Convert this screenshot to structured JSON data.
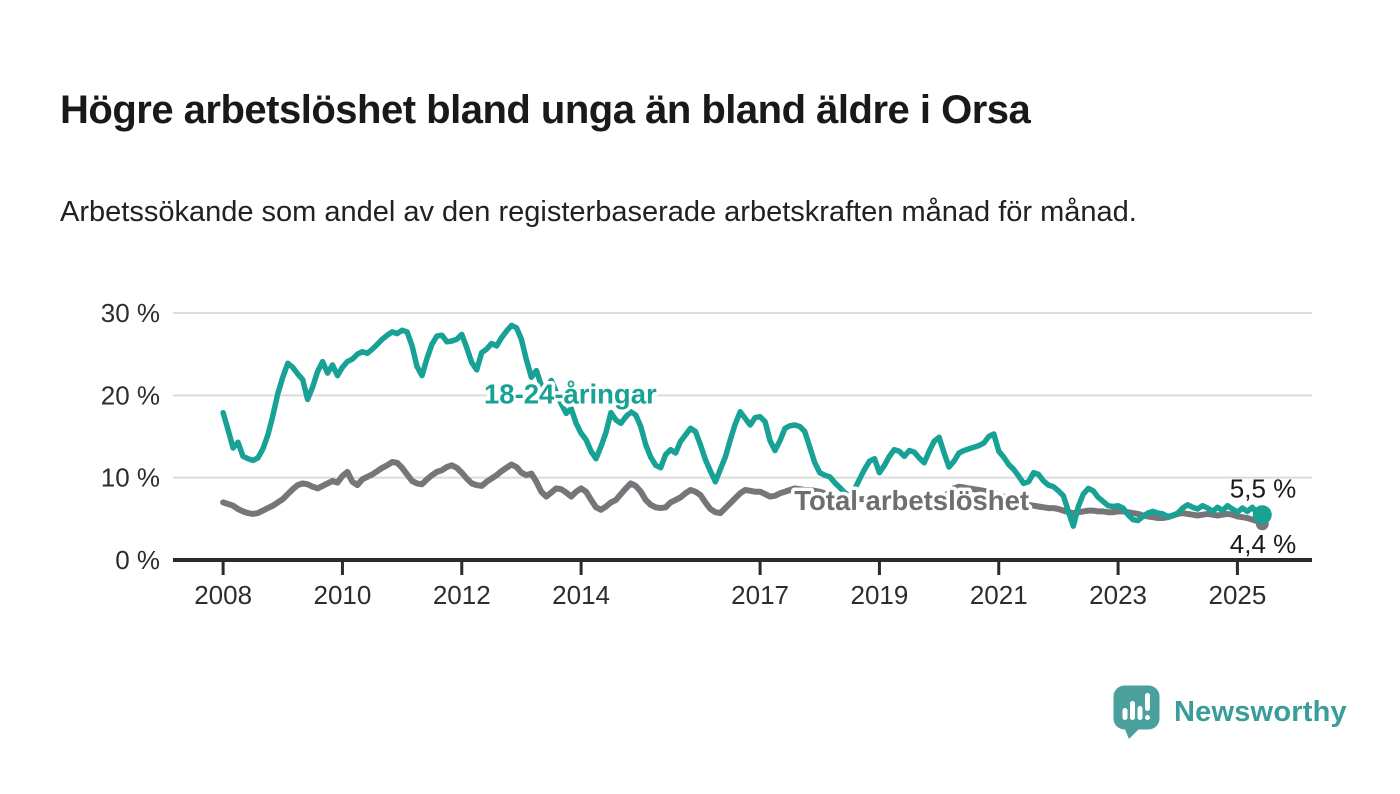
{
  "header": {
    "title": "Högre arbetslöshet bland unga än bland äldre i Orsa",
    "subtitle": "Arbetssökande som andel av den registerbaserade arbetskraften månad för månad."
  },
  "logo": {
    "brand": "Newsworthy",
    "icon": "newsworthy-speech-bubble-bar-chart-icon",
    "brand_color": "#3a9d99",
    "icon_color": "#4aa09c"
  },
  "chart_data": {
    "type": "line",
    "title": "",
    "xlabel": "",
    "ylabel": "",
    "unit": "%",
    "grid": "horizontal-gridlines",
    "legend_position": "inline-labels",
    "xlim": [
      2007.16,
      2026.25
    ],
    "ylim": [
      0,
      30
    ],
    "x_start_year": 2008,
    "x_step_months": 1,
    "y_ticks": [
      {
        "value": 0,
        "label": "0 %"
      },
      {
        "value": 10,
        "label": "10 %"
      },
      {
        "value": 20,
        "label": "20 %"
      },
      {
        "value": 30,
        "label": "30 %"
      }
    ],
    "x_ticks": [
      {
        "value": 2008,
        "label": "2008"
      },
      {
        "value": 2010,
        "label": "2010"
      },
      {
        "value": 2012,
        "label": "2012"
      },
      {
        "value": 2014,
        "label": "2014"
      },
      {
        "value": 2017,
        "label": "2017"
      },
      {
        "value": 2019,
        "label": "2019"
      },
      {
        "value": 2021,
        "label": "2021"
      },
      {
        "value": 2023,
        "label": "2023"
      },
      {
        "value": 2025,
        "label": "2025"
      }
    ],
    "series": [
      {
        "name": "18-24-åringar",
        "color": "#17a295",
        "label_color": "#17a295",
        "line_width": 5.5,
        "end_dot_radius": 9.5,
        "end_label": "5,5 %",
        "end_label_side": "above",
        "label_pos": {
          "x": 2013.82,
          "y": 20.2
        },
        "values": [
          17.9,
          15.8,
          13.6,
          14.3,
          12.6,
          12.3,
          12.1,
          12.4,
          13.5,
          15.2,
          17.5,
          20.2,
          22.2,
          23.9,
          23.4,
          22.6,
          21.9,
          19.5,
          21.0,
          22.9,
          24.1,
          22.7,
          23.7,
          22.4,
          23.4,
          24.1,
          24.4,
          25.0,
          25.3,
          25.1,
          25.6,
          26.2,
          26.8,
          27.3,
          27.7,
          27.5,
          27.9,
          27.7,
          26.0,
          23.5,
          22.4,
          24.5,
          26.2,
          27.2,
          27.3,
          26.5,
          26.6,
          26.8,
          27.4,
          25.8,
          24.0,
          23.1,
          25.2,
          25.6,
          26.3,
          26.0,
          27.0,
          27.8,
          28.5,
          28.2,
          26.8,
          24.3,
          22.2,
          23.0,
          21.2,
          21.0,
          21.8,
          20.4,
          19.0,
          17.8,
          18.4,
          16.6,
          15.4,
          14.6,
          13.2,
          12.3,
          13.8,
          15.5,
          17.9,
          17.0,
          16.6,
          17.4,
          18.0,
          17.6,
          16.2,
          14.0,
          12.5,
          11.5,
          11.2,
          12.8,
          13.4,
          13.0,
          14.4,
          15.2,
          16.0,
          15.6,
          14.0,
          12.2,
          10.8,
          9.5,
          11.0,
          12.5,
          14.6,
          16.5,
          18.0,
          17.2,
          16.4,
          17.3,
          17.4,
          16.8,
          14.5,
          13.3,
          14.5,
          16.0,
          16.3,
          16.4,
          16.2,
          15.6,
          13.7,
          11.8,
          10.6,
          10.3,
          10.1,
          9.4,
          8.8,
          8.2,
          7.8,
          8.6,
          9.8,
          11.0,
          12.0,
          12.3,
          10.6,
          11.5,
          12.6,
          13.4,
          13.2,
          12.6,
          13.3,
          13.1,
          12.4,
          11.8,
          13.2,
          14.4,
          14.9,
          13.0,
          11.3,
          12.0,
          13.0,
          13.3,
          13.5,
          13.7,
          13.9,
          14.2,
          15.0,
          15.3,
          13.2,
          12.5,
          11.6,
          11.0,
          10.2,
          9.3,
          9.5,
          10.6,
          10.4,
          9.6,
          9.1,
          8.9,
          8.4,
          7.8,
          5.9,
          4.1,
          6.5,
          8.0,
          8.7,
          8.4,
          7.6,
          7.1,
          6.6,
          6.5,
          6.6,
          6.3,
          5.5,
          4.9,
          4.8,
          5.3,
          5.7,
          5.9,
          5.7,
          5.6,
          5.3,
          5.4,
          5.7,
          6.3,
          6.7,
          6.4,
          6.2,
          6.6,
          6.3,
          5.9,
          6.4,
          6.0,
          6.6,
          6.2,
          5.8,
          6.3,
          5.9,
          6.4,
          5.7,
          5.5
        ]
      },
      {
        "name": "Total arbetslöshet",
        "color": "#76767a",
        "label_color": "#6e6e72",
        "line_width": 6,
        "end_dot_radius": 6.5,
        "end_label": "4,4 %",
        "end_label_side": "below",
        "label_pos": {
          "x": 2019.54,
          "y": 7.28
        },
        "values": [
          7.0,
          6.8,
          6.6,
          6.2,
          5.9,
          5.7,
          5.6,
          5.7,
          6.0,
          6.3,
          6.6,
          7.0,
          7.4,
          8.0,
          8.6,
          9.1,
          9.3,
          9.2,
          8.9,
          8.7,
          9.0,
          9.3,
          9.6,
          9.4,
          10.2,
          10.7,
          9.5,
          9.1,
          9.8,
          10.1,
          10.4,
          10.8,
          11.2,
          11.5,
          11.9,
          11.8,
          11.2,
          10.4,
          9.6,
          9.3,
          9.2,
          9.8,
          10.3,
          10.7,
          10.9,
          11.3,
          11.5,
          11.2,
          10.6,
          9.9,
          9.3,
          9.1,
          9.0,
          9.5,
          9.9,
          10.3,
          10.8,
          11.2,
          11.6,
          11.3,
          10.6,
          10.3,
          10.5,
          9.5,
          8.3,
          7.7,
          8.2,
          8.7,
          8.6,
          8.2,
          7.7,
          8.3,
          8.7,
          8.3,
          7.3,
          6.4,
          6.1,
          6.5,
          7.0,
          7.3,
          8.0,
          8.7,
          9.3,
          9.0,
          8.3,
          7.3,
          6.7,
          6.4,
          6.3,
          6.4,
          7.0,
          7.3,
          7.6,
          8.1,
          8.5,
          8.3,
          7.9,
          7.0,
          6.2,
          5.8,
          5.7,
          6.3,
          6.9,
          7.5,
          8.1,
          8.5,
          8.4,
          8.3,
          8.3,
          8.0,
          7.7,
          7.8,
          8.1,
          8.3,
          8.5,
          8.7,
          8.6,
          8.5,
          8.5,
          8.4,
          8.3,
          8.1,
          7.9,
          7.7,
          7.5,
          7.4,
          7.3,
          7.3,
          7.4,
          7.4,
          7.3,
          7.2,
          7.1,
          7.0,
          7.0,
          7.1,
          7.1,
          7.0,
          7.0,
          7.1,
          7.1,
          7.2,
          7.3,
          7.4,
          7.5,
          7.7,
          8.2,
          8.7,
          8.9,
          8.8,
          8.7,
          8.6,
          8.5,
          8.4,
          8.3,
          8.1,
          7.9,
          7.7,
          7.5,
          7.3,
          7.1,
          6.9,
          6.7,
          6.6,
          6.5,
          6.4,
          6.3,
          6.3,
          6.2,
          6.0,
          5.8,
          5.7,
          5.8,
          5.9,
          6.0,
          6.0,
          5.9,
          5.9,
          5.8,
          5.8,
          5.9,
          5.9,
          5.8,
          5.7,
          5.6,
          5.4,
          5.3,
          5.2,
          5.1,
          5.1,
          5.2,
          5.4,
          5.6,
          5.7,
          5.6,
          5.5,
          5.4,
          5.5,
          5.6,
          5.5,
          5.4,
          5.5,
          5.6,
          5.5,
          5.3,
          5.2,
          5.1,
          4.9,
          4.7,
          4.4
        ]
      }
    ]
  }
}
